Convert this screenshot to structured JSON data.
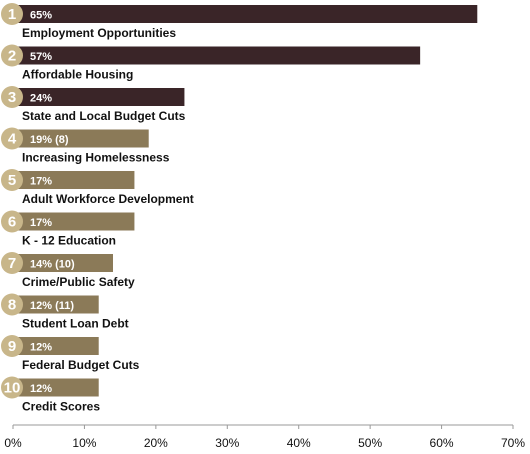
{
  "chart_data": {
    "type": "bar",
    "orientation": "horizontal",
    "title": "",
    "xlabel": "",
    "ylabel": "",
    "xlim": [
      0,
      70
    ],
    "x_ticks": [
      "0%",
      "10%",
      "20%",
      "30%",
      "40%",
      "50%",
      "60%",
      "70%"
    ],
    "grid": false,
    "items": [
      {
        "rank": "1",
        "category": "Employment Opportunities",
        "value": 65,
        "label": "65%",
        "highlight": true
      },
      {
        "rank": "2",
        "category": "Affordable Housing",
        "value": 57,
        "label": "57%",
        "highlight": true
      },
      {
        "rank": "3",
        "category": "State and Local Budget Cuts",
        "value": 24,
        "label": "24%",
        "highlight": true
      },
      {
        "rank": "4",
        "category": "Increasing Homelessness",
        "value": 19,
        "label": "19% (8)",
        "highlight": false
      },
      {
        "rank": "5",
        "category": "Adult Workforce Development",
        "value": 17,
        "label": "17%",
        "highlight": false
      },
      {
        "rank": "6",
        "category": "K - 12 Education",
        "value": 17,
        "label": "17%",
        "highlight": false
      },
      {
        "rank": "7",
        "category": "Crime/Public Safety",
        "value": 14,
        "label": "14% (10)",
        "highlight": false
      },
      {
        "rank": "8",
        "category": "Student Loan Debt",
        "value": 12,
        "label": "12% (11)",
        "highlight": false
      },
      {
        "rank": "9",
        "category": "Federal Budget Cuts",
        "value": 12,
        "label": "12%",
        "highlight": false
      },
      {
        "rank": "10",
        "category": "Credit Scores",
        "value": 12,
        "label": "12%",
        "highlight": false
      }
    ],
    "colors": {
      "highlight_bar": "#3a2528",
      "regular_bar": "#8b7a58",
      "rank_circle": "#c8b68a",
      "axis": "#999999"
    }
  }
}
